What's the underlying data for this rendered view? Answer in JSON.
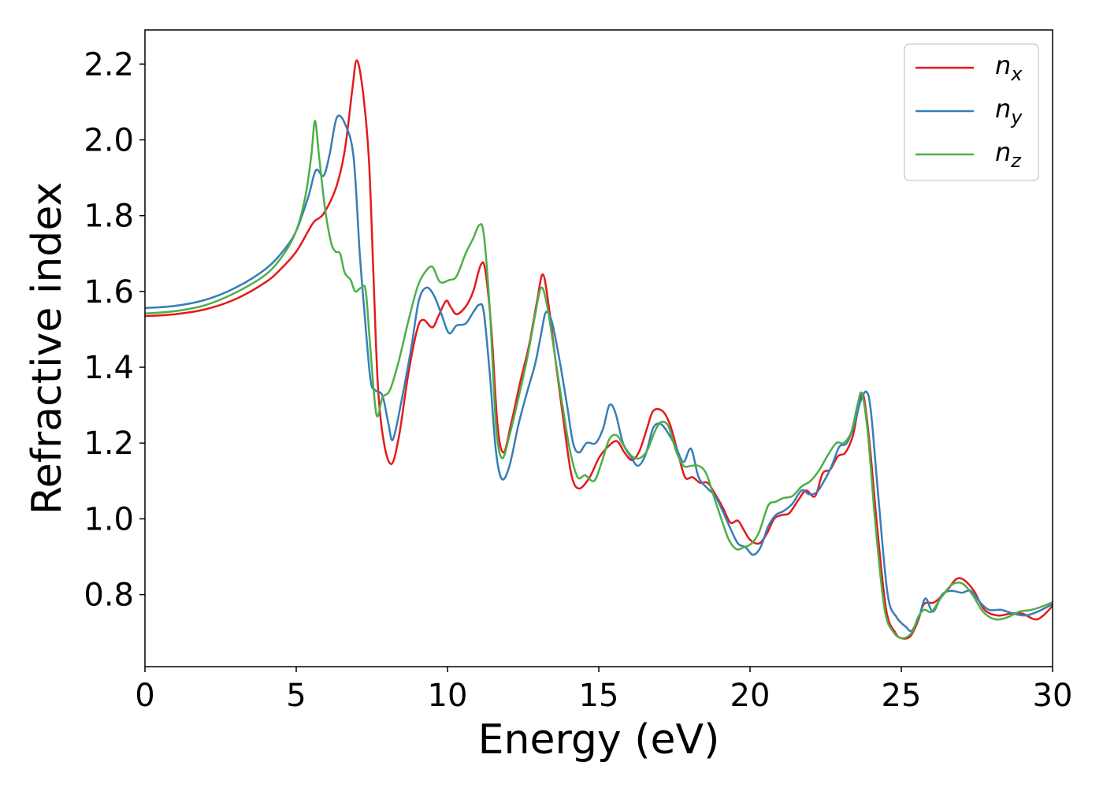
{
  "chart_data": {
    "type": "line",
    "title": "",
    "xlabel": "Energy (eV)",
    "ylabel": "Refractive index",
    "xlim": [
      0,
      30
    ],
    "ylim": [
      0.61,
      2.29
    ],
    "xticks": [
      0,
      5,
      10,
      15,
      20,
      25,
      30
    ],
    "xtick_labels": [
      "0",
      "5",
      "10",
      "15",
      "20",
      "25",
      "30"
    ],
    "yticks": [
      0.8,
      1.0,
      1.2,
      1.4,
      1.6,
      1.8,
      2.0,
      2.2
    ],
    "ytick_labels": [
      "0.8",
      "1.0",
      "1.2",
      "1.4",
      "1.6",
      "1.8",
      "2.0",
      "2.2"
    ],
    "grid": false,
    "legend_position": "top-right",
    "series": [
      {
        "name": "n",
        "sub": "x",
        "color": "#e41a1c",
        "points": [
          [
            0,
            1.535
          ],
          [
            1,
            1.54
          ],
          [
            2,
            1.553
          ],
          [
            3,
            1.58
          ],
          [
            4,
            1.625
          ],
          [
            4.5,
            1.66
          ],
          [
            5,
            1.705
          ],
          [
            5.4,
            1.76
          ],
          [
            5.6,
            1.785
          ],
          [
            5.9,
            1.805
          ],
          [
            6.3,
            1.87
          ],
          [
            6.6,
            1.97
          ],
          [
            6.85,
            2.13
          ],
          [
            7.0,
            2.21
          ],
          [
            7.2,
            2.13
          ],
          [
            7.4,
            1.95
          ],
          [
            7.55,
            1.65
          ],
          [
            7.7,
            1.35
          ],
          [
            7.9,
            1.2
          ],
          [
            8.15,
            1.145
          ],
          [
            8.4,
            1.22
          ],
          [
            8.7,
            1.38
          ],
          [
            9.0,
            1.5
          ],
          [
            9.2,
            1.525
          ],
          [
            9.5,
            1.505
          ],
          [
            9.7,
            1.535
          ],
          [
            9.95,
            1.575
          ],
          [
            10.1,
            1.56
          ],
          [
            10.3,
            1.54
          ],
          [
            10.6,
            1.56
          ],
          [
            10.85,
            1.6
          ],
          [
            11.1,
            1.67
          ],
          [
            11.25,
            1.655
          ],
          [
            11.45,
            1.5
          ],
          [
            11.65,
            1.25
          ],
          [
            11.85,
            1.175
          ],
          [
            12.1,
            1.25
          ],
          [
            12.4,
            1.36
          ],
          [
            12.7,
            1.46
          ],
          [
            12.95,
            1.57
          ],
          [
            13.15,
            1.645
          ],
          [
            13.35,
            1.56
          ],
          [
            13.6,
            1.4
          ],
          [
            13.85,
            1.25
          ],
          [
            14.1,
            1.115
          ],
          [
            14.35,
            1.08
          ],
          [
            14.7,
            1.11
          ],
          [
            15.0,
            1.16
          ],
          [
            15.3,
            1.19
          ],
          [
            15.6,
            1.205
          ],
          [
            15.85,
            1.175
          ],
          [
            16.1,
            1.155
          ],
          [
            16.35,
            1.18
          ],
          [
            16.6,
            1.24
          ],
          [
            16.8,
            1.285
          ],
          [
            17.1,
            1.285
          ],
          [
            17.35,
            1.25
          ],
          [
            17.6,
            1.18
          ],
          [
            17.85,
            1.11
          ],
          [
            18.1,
            1.11
          ],
          [
            18.35,
            1.095
          ],
          [
            18.6,
            1.095
          ],
          [
            18.85,
            1.065
          ],
          [
            19.1,
            1.03
          ],
          [
            19.35,
            0.99
          ],
          [
            19.6,
            0.995
          ],
          [
            19.8,
            0.97
          ],
          [
            20.0,
            0.945
          ],
          [
            20.3,
            0.935
          ],
          [
            20.55,
            0.96
          ],
          [
            20.8,
            1.0
          ],
          [
            21.05,
            1.01
          ],
          [
            21.3,
            1.015
          ],
          [
            21.6,
            1.05
          ],
          [
            21.85,
            1.075
          ],
          [
            22.15,
            1.06
          ],
          [
            22.4,
            1.12
          ],
          [
            22.65,
            1.13
          ],
          [
            22.9,
            1.165
          ],
          [
            23.15,
            1.175
          ],
          [
            23.4,
            1.22
          ],
          [
            23.6,
            1.3
          ],
          [
            23.75,
            1.325
          ],
          [
            23.95,
            1.2
          ],
          [
            24.2,
            0.98
          ],
          [
            24.5,
            0.76
          ],
          [
            24.8,
            0.7
          ],
          [
            25.0,
            0.685
          ],
          [
            25.3,
            0.69
          ],
          [
            25.55,
            0.73
          ],
          [
            25.75,
            0.775
          ],
          [
            26.1,
            0.78
          ],
          [
            26.5,
            0.81
          ],
          [
            26.8,
            0.84
          ],
          [
            27.05,
            0.84
          ],
          [
            27.4,
            0.81
          ],
          [
            27.75,
            0.76
          ],
          [
            28.2,
            0.745
          ],
          [
            28.6,
            0.75
          ],
          [
            29.0,
            0.75
          ],
          [
            29.5,
            0.735
          ],
          [
            30,
            0.77
          ]
        ]
      },
      {
        "name": "n",
        "sub": "y",
        "color": "#377eb8",
        "points": [
          [
            0,
            1.556
          ],
          [
            1,
            1.562
          ],
          [
            2,
            1.578
          ],
          [
            3,
            1.61
          ],
          [
            4,
            1.66
          ],
          [
            4.6,
            1.71
          ],
          [
            5,
            1.76
          ],
          [
            5.4,
            1.85
          ],
          [
            5.65,
            1.92
          ],
          [
            5.9,
            1.905
          ],
          [
            6.1,
            1.96
          ],
          [
            6.35,
            2.06
          ],
          [
            6.65,
            2.035
          ],
          [
            6.9,
            1.95
          ],
          [
            7.1,
            1.7
          ],
          [
            7.25,
            1.55
          ],
          [
            7.45,
            1.37
          ],
          [
            7.6,
            1.34
          ],
          [
            7.85,
            1.325
          ],
          [
            8.05,
            1.25
          ],
          [
            8.2,
            1.21
          ],
          [
            8.5,
            1.32
          ],
          [
            8.8,
            1.45
          ],
          [
            9.05,
            1.575
          ],
          [
            9.3,
            1.61
          ],
          [
            9.55,
            1.59
          ],
          [
            9.8,
            1.54
          ],
          [
            10.05,
            1.49
          ],
          [
            10.3,
            1.51
          ],
          [
            10.6,
            1.515
          ],
          [
            10.85,
            1.545
          ],
          [
            11.05,
            1.565
          ],
          [
            11.2,
            1.545
          ],
          [
            11.4,
            1.38
          ],
          [
            11.6,
            1.18
          ],
          [
            11.8,
            1.105
          ],
          [
            12.05,
            1.14
          ],
          [
            12.35,
            1.25
          ],
          [
            12.65,
            1.34
          ],
          [
            12.9,
            1.41
          ],
          [
            13.1,
            1.49
          ],
          [
            13.25,
            1.545
          ],
          [
            13.45,
            1.52
          ],
          [
            13.7,
            1.42
          ],
          [
            13.95,
            1.3
          ],
          [
            14.15,
            1.2
          ],
          [
            14.35,
            1.175
          ],
          [
            14.6,
            1.2
          ],
          [
            14.9,
            1.2
          ],
          [
            15.15,
            1.24
          ],
          [
            15.35,
            1.3
          ],
          [
            15.55,
            1.28
          ],
          [
            15.8,
            1.2
          ],
          [
            16.05,
            1.165
          ],
          [
            16.3,
            1.14
          ],
          [
            16.55,
            1.17
          ],
          [
            16.8,
            1.24
          ],
          [
            17.05,
            1.25
          ],
          [
            17.3,
            1.225
          ],
          [
            17.55,
            1.19
          ],
          [
            17.8,
            1.15
          ],
          [
            18.05,
            1.185
          ],
          [
            18.3,
            1.11
          ],
          [
            18.6,
            1.08
          ],
          [
            18.85,
            1.06
          ],
          [
            19.1,
            1.02
          ],
          [
            19.35,
            0.975
          ],
          [
            19.6,
            0.935
          ],
          [
            19.85,
            0.925
          ],
          [
            20.1,
            0.905
          ],
          [
            20.35,
            0.925
          ],
          [
            20.6,
            0.98
          ],
          [
            20.85,
            1.01
          ],
          [
            21.1,
            1.02
          ],
          [
            21.4,
            1.04
          ],
          [
            21.7,
            1.075
          ],
          [
            21.95,
            1.065
          ],
          [
            22.2,
            1.07
          ],
          [
            22.45,
            1.1
          ],
          [
            22.7,
            1.14
          ],
          [
            22.95,
            1.19
          ],
          [
            23.2,
            1.2
          ],
          [
            23.45,
            1.25
          ],
          [
            23.65,
            1.31
          ],
          [
            23.85,
            1.335
          ],
          [
            24.0,
            1.28
          ],
          [
            24.25,
            1.05
          ],
          [
            24.55,
            0.8
          ],
          [
            24.85,
            0.74
          ],
          [
            25.15,
            0.715
          ],
          [
            25.35,
            0.705
          ],
          [
            25.6,
            0.745
          ],
          [
            25.8,
            0.79
          ],
          [
            26.05,
            0.755
          ],
          [
            26.35,
            0.8
          ],
          [
            26.65,
            0.81
          ],
          [
            27.0,
            0.805
          ],
          [
            27.3,
            0.81
          ],
          [
            27.6,
            0.78
          ],
          [
            27.9,
            0.76
          ],
          [
            28.3,
            0.76
          ],
          [
            28.7,
            0.75
          ],
          [
            29.1,
            0.745
          ],
          [
            29.5,
            0.755
          ],
          [
            30,
            0.775
          ]
        ]
      },
      {
        "name": "n",
        "sub": "z",
        "color": "#4daf4a",
        "points": [
          [
            0,
            1.542
          ],
          [
            1,
            1.548
          ],
          [
            2,
            1.564
          ],
          [
            3,
            1.597
          ],
          [
            4,
            1.645
          ],
          [
            4.6,
            1.7
          ],
          [
            5,
            1.76
          ],
          [
            5.3,
            1.85
          ],
          [
            5.5,
            1.96
          ],
          [
            5.62,
            2.05
          ],
          [
            5.75,
            1.96
          ],
          [
            5.95,
            1.82
          ],
          [
            6.15,
            1.73
          ],
          [
            6.3,
            1.705
          ],
          [
            6.45,
            1.7
          ],
          [
            6.6,
            1.65
          ],
          [
            6.8,
            1.63
          ],
          [
            6.95,
            1.6
          ],
          [
            7.15,
            1.61
          ],
          [
            7.3,
            1.6
          ],
          [
            7.45,
            1.45
          ],
          [
            7.65,
            1.275
          ],
          [
            7.85,
            1.32
          ],
          [
            8.1,
            1.34
          ],
          [
            8.4,
            1.42
          ],
          [
            8.7,
            1.52
          ],
          [
            9.0,
            1.61
          ],
          [
            9.25,
            1.65
          ],
          [
            9.5,
            1.665
          ],
          [
            9.75,
            1.625
          ],
          [
            10.05,
            1.63
          ],
          [
            10.3,
            1.64
          ],
          [
            10.6,
            1.7
          ],
          [
            10.85,
            1.74
          ],
          [
            11.05,
            1.775
          ],
          [
            11.2,
            1.75
          ],
          [
            11.4,
            1.55
          ],
          [
            11.6,
            1.25
          ],
          [
            11.8,
            1.16
          ],
          [
            12.05,
            1.22
          ],
          [
            12.35,
            1.32
          ],
          [
            12.65,
            1.43
          ],
          [
            12.9,
            1.54
          ],
          [
            13.1,
            1.61
          ],
          [
            13.3,
            1.56
          ],
          [
            13.55,
            1.43
          ],
          [
            13.8,
            1.3
          ],
          [
            14.05,
            1.18
          ],
          [
            14.3,
            1.11
          ],
          [
            14.55,
            1.115
          ],
          [
            14.85,
            1.1
          ],
          [
            15.1,
            1.15
          ],
          [
            15.35,
            1.21
          ],
          [
            15.6,
            1.22
          ],
          [
            15.85,
            1.19
          ],
          [
            16.1,
            1.165
          ],
          [
            16.35,
            1.16
          ],
          [
            16.6,
            1.18
          ],
          [
            16.85,
            1.23
          ],
          [
            17.05,
            1.255
          ],
          [
            17.3,
            1.245
          ],
          [
            17.55,
            1.18
          ],
          [
            17.8,
            1.14
          ],
          [
            18.05,
            1.14
          ],
          [
            18.3,
            1.14
          ],
          [
            18.55,
            1.12
          ],
          [
            18.8,
            1.06
          ],
          [
            19.05,
            1.0
          ],
          [
            19.3,
            0.945
          ],
          [
            19.55,
            0.92
          ],
          [
            19.8,
            0.925
          ],
          [
            20.05,
            0.935
          ],
          [
            20.3,
            0.965
          ],
          [
            20.6,
            1.035
          ],
          [
            20.85,
            1.045
          ],
          [
            21.1,
            1.055
          ],
          [
            21.4,
            1.06
          ],
          [
            21.7,
            1.085
          ],
          [
            22.0,
            1.1
          ],
          [
            22.3,
            1.13
          ],
          [
            22.55,
            1.165
          ],
          [
            22.85,
            1.2
          ],
          [
            23.1,
            1.2
          ],
          [
            23.35,
            1.23
          ],
          [
            23.55,
            1.3
          ],
          [
            23.7,
            1.33
          ],
          [
            23.9,
            1.22
          ],
          [
            24.15,
            0.98
          ],
          [
            24.45,
            0.76
          ],
          [
            24.75,
            0.7
          ],
          [
            25.05,
            0.685
          ],
          [
            25.35,
            0.7
          ],
          [
            25.55,
            0.74
          ],
          [
            25.75,
            0.76
          ],
          [
            26.0,
            0.755
          ],
          [
            26.3,
            0.79
          ],
          [
            26.65,
            0.825
          ],
          [
            27.0,
            0.83
          ],
          [
            27.35,
            0.8
          ],
          [
            27.7,
            0.755
          ],
          [
            28.1,
            0.735
          ],
          [
            28.5,
            0.74
          ],
          [
            28.9,
            0.755
          ],
          [
            29.3,
            0.76
          ],
          [
            29.7,
            0.77
          ],
          [
            30,
            0.78
          ]
        ]
      }
    ]
  }
}
